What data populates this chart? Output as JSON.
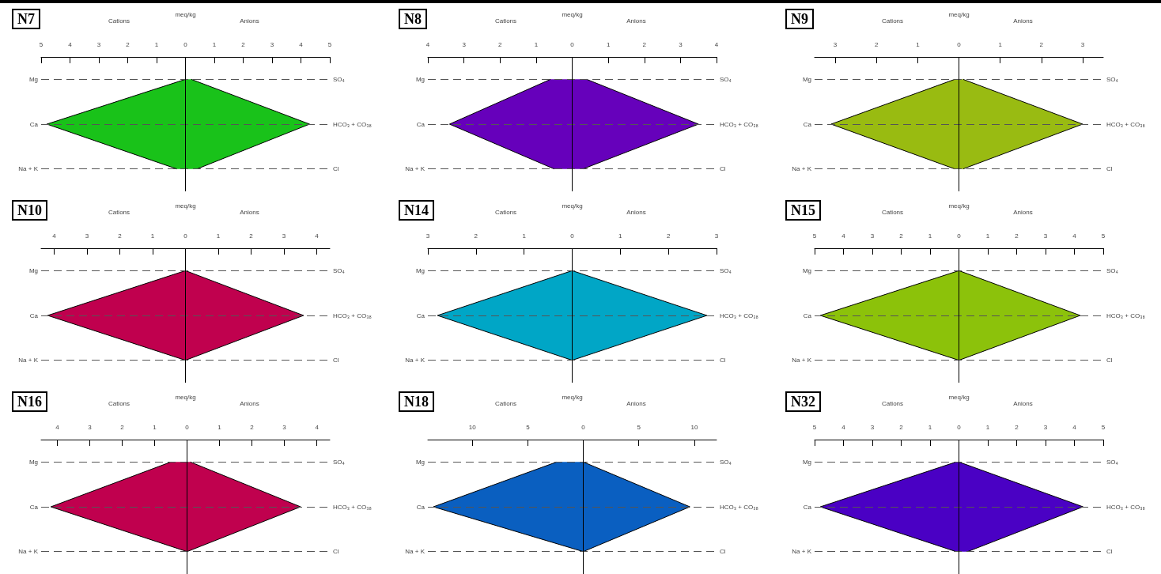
{
  "chart_data": [
    {
      "type": "area",
      "orientation": "horizontal",
      "title": "N7",
      "xlabel": "meq/kg",
      "annotations": [
        "Cations",
        "Anions"
      ],
      "categories": [
        "Mg",
        "Ca",
        "Na + K"
      ],
      "y2_categories": [
        "SO₄",
        "HCO₃ + CO₃₈",
        "Cl"
      ],
      "xlim": [
        -5,
        5
      ],
      "xticks": [
        {
          "value": -5,
          "label": "5"
        },
        {
          "value": -4,
          "label": "4"
        },
        {
          "value": -3,
          "label": "3"
        },
        {
          "value": -2,
          "label": "2"
        },
        {
          "value": -1,
          "label": "1"
        },
        0,
        1,
        2,
        3,
        4,
        5
      ],
      "grid": "y",
      "ref_lines": [
        {
          "axis": "x",
          "value": 0
        }
      ],
      "series": [
        {
          "color": "#19c219",
          "values": [
            0,
            -4.8,
            -0.3
          ]
        },
        {
          "color": "#19c21a",
          "values": [
            0.2,
            4.3,
            0.4
          ]
        }
      ]
    },
    {
      "type": "area",
      "orientation": "horizontal",
      "title": "N8",
      "xlabel": "meq/kg",
      "annotations": [
        "Cations",
        "Anions"
      ],
      "categories": [
        "Mg",
        "Ca",
        "Na + K"
      ],
      "y2_categories": [
        "SO₄",
        "HCO₃ + CO₃₈",
        "Cl"
      ],
      "xlim": [
        -4,
        4
      ],
      "xticks": [
        {
          "value": -4,
          "label": "4"
        },
        {
          "value": -3,
          "label": "3"
        },
        {
          "value": -2,
          "label": "2"
        },
        {
          "value": -1,
          "label": "1"
        },
        0,
        1,
        2,
        3,
        4
      ],
      "grid": "y",
      "ref_lines": [
        {
          "axis": "x",
          "value": 0
        }
      ],
      "series": [
        {
          "color": "#6600bb",
          "values": [
            -0.6,
            -3.4,
            -0.5
          ]
        },
        {
          "color": "#6601bb",
          "values": [
            0.4,
            3.5,
            0.3
          ]
        }
      ]
    },
    {
      "type": "area",
      "orientation": "horizontal",
      "title": "N9",
      "xlabel": "meq/kg",
      "annotations": [
        "Cations",
        "Anions"
      ],
      "categories": [
        "Mg",
        "Ca",
        "Na + K"
      ],
      "y2_categories": [
        "SO₄",
        "HCO₃ + CO₃₈",
        "Cl"
      ],
      "xlim": [
        -3.5,
        3.5
      ],
      "xticks": [
        {
          "value": -3,
          "label": "3"
        },
        {
          "value": -2,
          "label": "2"
        },
        {
          "value": -1,
          "label": "1"
        },
        0,
        1,
        2,
        3
      ],
      "grid": "y",
      "ref_lines": [
        {
          "axis": "x",
          "value": 0
        }
      ],
      "series": [
        {
          "color": "#99bb11",
          "values": [
            -0.1,
            -3.1,
            -0.1
          ]
        },
        {
          "color": "#99bb12",
          "values": [
            0.1,
            3.0,
            0.1
          ]
        }
      ]
    },
    {
      "type": "area",
      "orientation": "horizontal",
      "title": "N10",
      "xlabel": "meq/kg",
      "annotations": [
        "Cations",
        "Anions"
      ],
      "categories": [
        "Mg",
        "Ca",
        "Na + K"
      ],
      "y2_categories": [
        "SO₄",
        "HCO₃ + CO₃₈",
        "Cl"
      ],
      "xlim": [
        -4.4,
        4.4
      ],
      "xticks": [
        {
          "value": -4,
          "label": "4"
        },
        {
          "value": -3,
          "label": "3"
        },
        {
          "value": -2,
          "label": "2"
        },
        {
          "value": -1,
          "label": "1"
        },
        0,
        1,
        2,
        3,
        4
      ],
      "grid": "y",
      "ref_lines": [
        {
          "axis": "x",
          "value": 0
        }
      ],
      "series": [
        {
          "color": "#c0004e",
          "values": [
            0,
            -4.2,
            0
          ]
        },
        {
          "color": "#c0014e",
          "values": [
            0,
            3.6,
            0
          ]
        }
      ]
    },
    {
      "type": "area",
      "orientation": "horizontal",
      "title": "N14",
      "xlabel": "meq/kg",
      "annotations": [
        "Cations",
        "Anions"
      ],
      "categories": [
        "Mg",
        "Ca",
        "Na + K"
      ],
      "y2_categories": [
        "SO₄",
        "HCO₃ + CO₃₈",
        "Cl"
      ],
      "xlim": [
        -3,
        3
      ],
      "xticks": [
        {
          "value": -3,
          "label": "3"
        },
        {
          "value": -2,
          "label": "2"
        },
        {
          "value": -1,
          "label": "1"
        },
        0,
        1,
        2,
        3
      ],
      "grid": "y",
      "ref_lines": [
        {
          "axis": "x",
          "value": 0
        }
      ],
      "series": [
        {
          "color": "#00a6c6",
          "values": [
            0,
            -2.8,
            0
          ]
        },
        {
          "color": "#01a6c6",
          "values": [
            0,
            2.8,
            0
          ]
        }
      ]
    },
    {
      "type": "area",
      "orientation": "horizontal",
      "title": "N15",
      "xlabel": "meq/kg",
      "annotations": [
        "Cations",
        "Anions"
      ],
      "categories": [
        "Mg",
        "Ca",
        "Na + K"
      ],
      "y2_categories": [
        "SO₄",
        "HCO₃ + CO₃₈",
        "Cl"
      ],
      "xlim": [
        -5,
        5
      ],
      "xticks": [
        {
          "value": -5,
          "label": "5"
        },
        {
          "value": -4,
          "label": "4"
        },
        {
          "value": -3,
          "label": "3"
        },
        {
          "value": -2,
          "label": "2"
        },
        {
          "value": -1,
          "label": "1"
        },
        0,
        1,
        2,
        3,
        4,
        5
      ],
      "grid": "y",
      "ref_lines": [
        {
          "axis": "x",
          "value": 0
        }
      ],
      "series": [
        {
          "color": "#8cc20a",
          "values": [
            0,
            -4.8,
            0
          ]
        },
        {
          "color": "#8cc20b",
          "values": [
            0,
            4.2,
            0
          ]
        }
      ]
    },
    {
      "type": "area",
      "orientation": "horizontal",
      "title": "N16",
      "xlabel": "meq/kg",
      "annotations": [
        "Cations",
        "Anions"
      ],
      "categories": [
        "Mg",
        "Ca",
        "Na + K"
      ],
      "y2_categories": [
        "SO₄",
        "HCO₃ + CO₃₈",
        "Cl"
      ],
      "xlim": [
        -4.5,
        4.4
      ],
      "xticks": [
        {
          "value": -4,
          "label": "4"
        },
        {
          "value": -3,
          "label": "3"
        },
        {
          "value": -2,
          "label": "2"
        },
        {
          "value": -1,
          "label": "1"
        },
        0,
        1,
        2,
        3,
        4
      ],
      "grid": "y",
      "ref_lines": [
        {
          "axis": "x",
          "value": 0
        }
      ],
      "series": [
        {
          "color": "#c0004e",
          "values": [
            -0.5,
            -4.2,
            0
          ]
        },
        {
          "color": "#c0014e",
          "values": [
            0.1,
            3.5,
            0
          ]
        }
      ]
    },
    {
      "type": "area",
      "orientation": "horizontal",
      "title": "N18",
      "xlabel": "meq/kg",
      "annotations": [
        "Cations",
        "Anions"
      ],
      "categories": [
        "Mg",
        "Ca",
        "Na + K"
      ],
      "y2_categories": [
        "SO₄",
        "HCO₃ + CO₃₈",
        "Cl"
      ],
      "xlim": [
        -14,
        12
      ],
      "xticks": [
        {
          "value": -10,
          "label": "10"
        },
        {
          "value": -5,
          "label": "5"
        },
        0,
        5,
        10
      ],
      "grid": "y",
      "ref_lines": [
        {
          "axis": "x",
          "value": 0
        }
      ],
      "series": [
        {
          "color": "#0a5fc0",
          "values": [
            -2.4,
            -13.5,
            0
          ]
        },
        {
          "color": "#0a5fc1",
          "values": [
            0,
            9.6,
            0
          ]
        }
      ]
    },
    {
      "type": "area",
      "orientation": "horizontal",
      "title": "N32",
      "xlabel": "meq/kg",
      "annotations": [
        "Cations",
        "Anions"
      ],
      "categories": [
        "Mg",
        "Ca",
        "Na + K"
      ],
      "y2_categories": [
        "SO₄",
        "HCO₃ + CO₃₈",
        "Cl"
      ],
      "xlim": [
        -5,
        5
      ],
      "xticks": [
        {
          "value": -5,
          "label": "5"
        },
        {
          "value": -4,
          "label": "4"
        },
        {
          "value": -3,
          "label": "3"
        },
        {
          "value": -2,
          "label": "2"
        },
        {
          "value": -1,
          "label": "1"
        },
        0,
        1,
        2,
        3,
        4,
        5
      ],
      "grid": "y",
      "ref_lines": [
        {
          "axis": "x",
          "value": 0
        }
      ],
      "series": [
        {
          "color": "#4a00c4",
          "values": [
            -0.1,
            -4.8,
            -0.1
          ]
        },
        {
          "color": "#4a01c4",
          "values": [
            0,
            4.3,
            0.3
          ]
        }
      ]
    }
  ]
}
